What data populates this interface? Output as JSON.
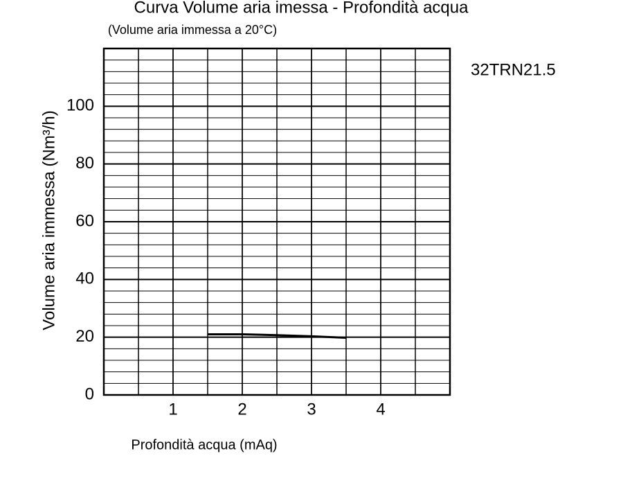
{
  "chart_data": {
    "type": "line",
    "title": "Curva Volume aria imessa - Profondità acqua",
    "subtitle": "(Volume aria immessa a 20°C)",
    "x_label": "Profondità acqua (mAq)",
    "y_label": "Volume aria immessa (Nm³/h)",
    "x": [
      1.5,
      2,
      2.5,
      3,
      3.5
    ],
    "series": [
      {
        "name": "32TRN21.5",
        "color": "#000000",
        "values": [
          21,
          21,
          20.7,
          20.3,
          19.8
        ]
      }
    ],
    "xlim": [
      0,
      5
    ],
    "xticks": [
      1,
      2,
      3,
      4
    ],
    "ylim": [
      0,
      120
    ],
    "yticks": [
      0,
      20,
      40,
      60,
      80,
      100
    ],
    "grid": true,
    "xgrid_step": 0.5,
    "ygrid_step": 4
  }
}
